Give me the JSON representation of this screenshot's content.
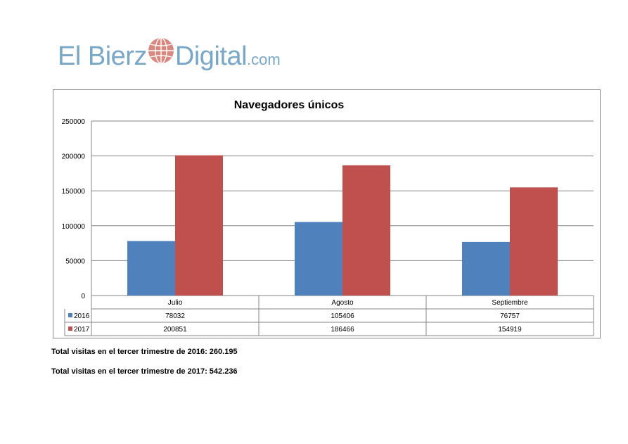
{
  "logo": {
    "part1": "El Bierz",
    "part2": "Digital",
    "domain": ".com",
    "globe_icon": "globe-icon",
    "text_color": "#78a7c8",
    "globe_color": "#d9877f"
  },
  "chart_data": {
    "type": "bar",
    "title": "Navegadores únicos",
    "categories": [
      "Julio",
      "Agosto",
      "Septiembre"
    ],
    "series": [
      {
        "name": "2016",
        "color": "#4f81bd",
        "values": [
          78032,
          105406,
          76757
        ]
      },
      {
        "name": "2017",
        "color": "#c0504d",
        "values": [
          200851,
          186466,
          154919
        ]
      }
    ],
    "ylim": [
      0,
      250000
    ],
    "yticks": [
      0,
      50000,
      100000,
      150000,
      200000,
      250000
    ],
    "grid": true,
    "data_table": true,
    "table_values": [
      [
        "78032",
        "105406",
        "76757"
      ],
      [
        "200851",
        "186466",
        "154919"
      ]
    ]
  },
  "notes": [
    "Total visitas en el tercer trimestre de 2016: 260.195",
    "Total visitas en el tercer trimestre de 2017: 542.236"
  ]
}
